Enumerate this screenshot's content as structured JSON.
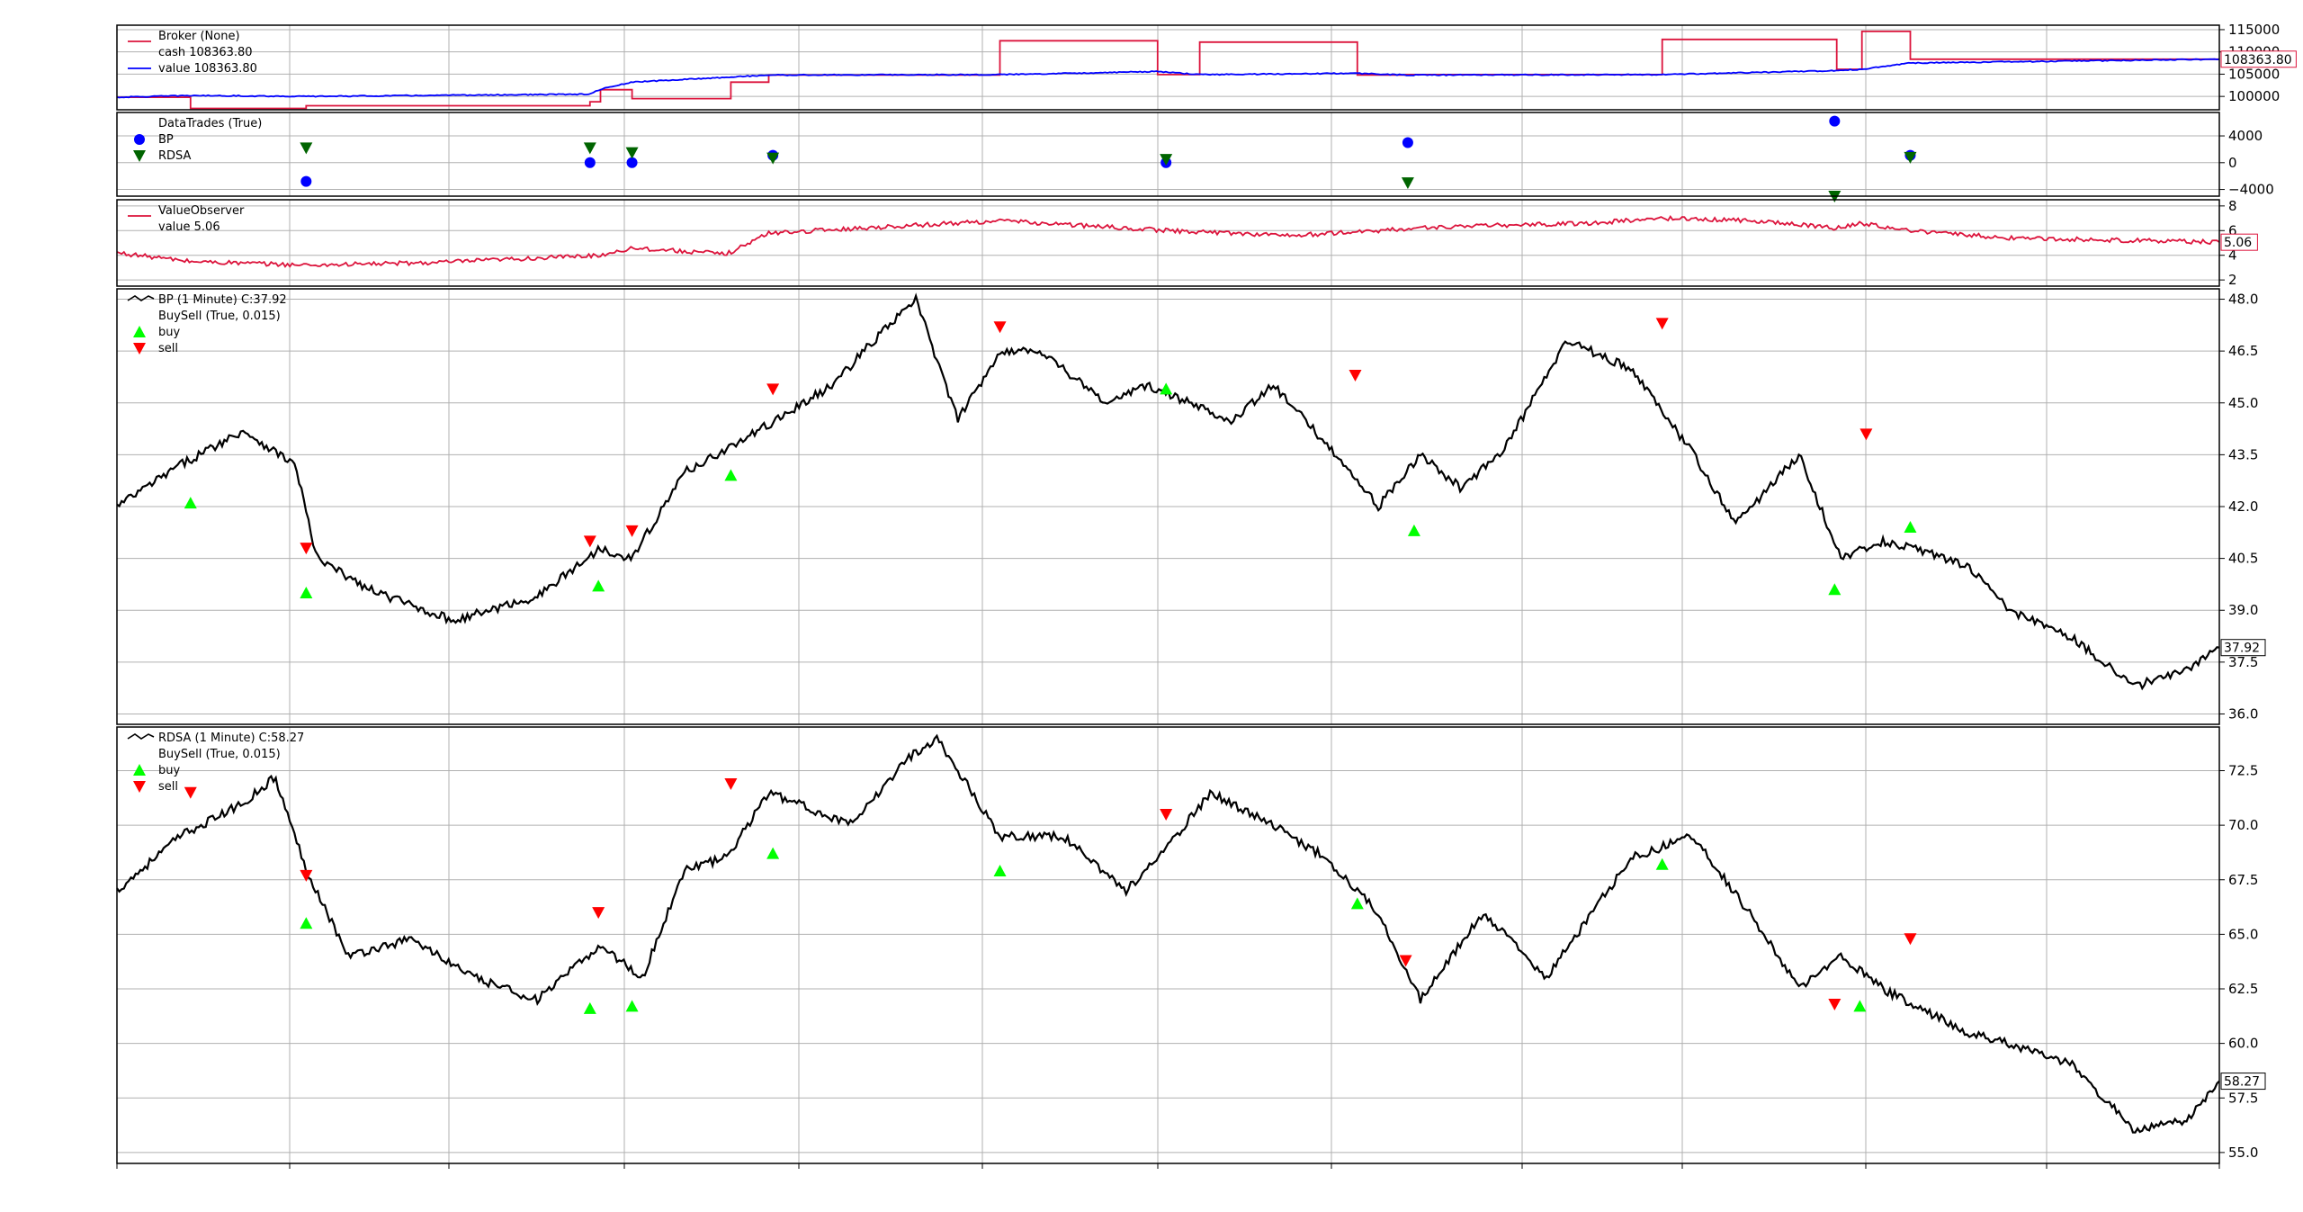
{
  "chart_data": [
    {
      "type": "line",
      "panel": "broker",
      "legend": {
        "title": "Broker (None)",
        "items": [
          {
            "label": "cash 108363.80",
            "color": "#dc143c",
            "marker": "line"
          },
          {
            "label": "value 108363.80",
            "color": "#0000ff",
            "marker": "line"
          }
        ]
      },
      "ylim": [
        97000,
        116000
      ],
      "yticks": [
        100000,
        105000,
        110000,
        115000
      ],
      "ytick_labels": [
        "100000",
        "105000",
        "110000",
        "115000"
      ],
      "last_value_label": "108363.80",
      "grid": true,
      "series": [
        {
          "name": "cash",
          "color": "#dc143c",
          "shape": "step",
          "x": [
            0,
            0.035,
            0.035,
            0.09,
            0.09,
            0.225,
            0.225,
            0.23,
            0.23,
            0.245,
            0.245,
            0.292,
            0.292,
            0.31,
            0.31,
            0.42,
            0.42,
            0.495,
            0.495,
            0.515,
            0.515,
            0.59,
            0.59,
            0.613,
            0.613,
            0.735,
            0.735,
            0.818,
            0.818,
            0.83,
            0.83,
            0.853,
            0.853,
            1
          ],
          "y": [
            99800,
            99800,
            97300,
            97300,
            97900,
            97900,
            98800,
            98800,
            101500,
            101500,
            99500,
            99500,
            103200,
            103200,
            104800,
            104800,
            112500,
            112500,
            104900,
            104900,
            112200,
            112200,
            104800,
            104800,
            104900,
            104900,
            112800,
            112800,
            106100,
            106100,
            114600,
            114600,
            108363.8,
            108363.8
          ]
        },
        {
          "name": "value",
          "color": "#0000ff",
          "shape": "noisy",
          "x": [
            0,
            0.035,
            0.09,
            0.225,
            0.23,
            0.245,
            0.31,
            0.42,
            0.495,
            0.515,
            0.59,
            0.613,
            0.735,
            0.818,
            0.83,
            0.853,
            1
          ],
          "y": [
            99800,
            100200,
            100000,
            100500,
            101600,
            103200,
            104800,
            104900,
            105600,
            104900,
            105200,
            104800,
            104900,
            105800,
            106100,
            107500,
            108363.8
          ]
        }
      ]
    },
    {
      "type": "scatter",
      "panel": "datatrades",
      "legend": {
        "title": "DataTrades (True)",
        "items": [
          {
            "label": "BP",
            "color": "#0000ff",
            "marker": "circle"
          },
          {
            "label": "RDSA",
            "color": "#006400",
            "marker": "triangle-down"
          }
        ]
      },
      "ylim": [
        -5000,
        7500
      ],
      "yticks": [
        -4000,
        0,
        4000
      ],
      "ytick_labels": [
        "−4000",
        "0",
        "4000"
      ],
      "grid": true,
      "series": [
        {
          "name": "BP",
          "color": "#0000ff",
          "marker": "circle",
          "x": [
            0.09,
            0.225,
            0.245,
            0.312,
            0.499,
            0.614,
            0.817,
            0.853
          ],
          "y": [
            -2800,
            0,
            0,
            1100,
            0,
            3000,
            6200,
            1100
          ]
        },
        {
          "name": "RDSA",
          "color": "#006400",
          "marker": "triangle-down",
          "x": [
            0.09,
            0.225,
            0.245,
            0.312,
            0.499,
            0.614,
            0.817,
            0.853
          ],
          "y": [
            2200,
            2200,
            1500,
            700,
            500,
            -3000,
            -5000,
            800
          ]
        }
      ]
    },
    {
      "type": "line",
      "panel": "valueobserver",
      "legend": {
        "title": "ValueObserver",
        "items": [
          {
            "label": "value 5.06",
            "color": "#dc143c",
            "marker": "line"
          }
        ]
      },
      "ylim": [
        1.5,
        8.5
      ],
      "yticks": [
        2,
        4,
        6,
        8
      ],
      "ytick_labels": [
        "2",
        "4",
        "6",
        "8"
      ],
      "last_value_label": "5.06",
      "grid": true,
      "series": [
        {
          "name": "value",
          "color": "#dc143c",
          "shape": "noisy",
          "x": [
            0,
            0.035,
            0.09,
            0.15,
            0.23,
            0.245,
            0.29,
            0.31,
            0.42,
            0.5,
            0.56,
            0.63,
            0.7,
            0.735,
            0.78,
            0.818,
            0.83,
            0.853,
            0.9,
            1
          ],
          "y": [
            4.2,
            3.5,
            3.2,
            3.4,
            4.0,
            4.6,
            4.1,
            5.8,
            6.8,
            6.0,
            5.6,
            6.3,
            6.6,
            7.0,
            6.8,
            6.2,
            6.6,
            6.0,
            5.4,
            5.06
          ]
        }
      ]
    },
    {
      "type": "line",
      "panel": "bp",
      "legend": {
        "title": "BP (1 Minute) C:37.92",
        "items": [
          {
            "label": "BuySell (True, 0.015)",
            "color": "",
            "marker": "none"
          },
          {
            "label": "buy",
            "color": "#00ff00",
            "marker": "triangle-up"
          },
          {
            "label": "sell",
            "color": "#ff0000",
            "marker": "triangle-down"
          }
        ]
      },
      "ylim": [
        35.7,
        48.3
      ],
      "yticks": [
        36.0,
        37.5,
        39.0,
        40.5,
        42.0,
        43.5,
        45.0,
        46.5,
        48.0
      ],
      "ytick_labels": [
        "36.0",
        "37.5",
        "39.0",
        "40.5",
        "42.0",
        "43.5",
        "45.0",
        "46.5",
        "48.0"
      ],
      "last_value_label": "37.92",
      "grid": true,
      "series": [
        {
          "name": "close",
          "color": "#000000",
          "shape": "noisy",
          "x": [
            0,
            0.03,
            0.06,
            0.085,
            0.095,
            0.12,
            0.16,
            0.2,
            0.23,
            0.245,
            0.27,
            0.3,
            0.34,
            0.36,
            0.38,
            0.4,
            0.42,
            0.44,
            0.47,
            0.49,
            0.51,
            0.53,
            0.55,
            0.58,
            0.6,
            0.62,
            0.64,
            0.66,
            0.69,
            0.72,
            0.75,
            0.77,
            0.8,
            0.82,
            0.84,
            0.86,
            0.88,
            0.9,
            0.93,
            0.96,
            0.985,
            1
          ],
          "y": [
            42.0,
            43.2,
            44.2,
            43.2,
            40.5,
            39.6,
            38.7,
            39.4,
            40.8,
            40.5,
            43.0,
            44.0,
            45.5,
            46.8,
            48.0,
            44.5,
            46.5,
            46.5,
            45.0,
            45.5,
            45.0,
            44.5,
            45.5,
            43.5,
            42.0,
            43.5,
            42.5,
            43.7,
            46.8,
            46.0,
            43.5,
            41.5,
            43.5,
            40.5,
            41.0,
            40.7,
            40.3,
            39.0,
            38.2,
            36.8,
            37.3,
            37.92
          ]
        },
        {
          "name": "buy",
          "color": "#00ff00",
          "marker": "triangle-up",
          "x": [
            0.035,
            0.09,
            0.229,
            0.292,
            0.499,
            0.617,
            0.817,
            0.853
          ],
          "y": [
            42.1,
            39.5,
            39.7,
            42.9,
            45.4,
            41.3,
            39.6,
            41.4
          ]
        },
        {
          "name": "sell",
          "color": "#ff0000",
          "marker": "triangle-down",
          "x": [
            0.09,
            0.225,
            0.245,
            0.312,
            0.42,
            0.589,
            0.735,
            0.832
          ],
          "y": [
            40.8,
            41.0,
            41.3,
            45.4,
            47.2,
            45.8,
            47.3,
            44.1
          ]
        }
      ]
    },
    {
      "type": "line",
      "panel": "rdsa",
      "legend": {
        "title": "RDSA (1 Minute) C:58.27",
        "items": [
          {
            "label": "BuySell (True, 0.015)",
            "color": "",
            "marker": "none"
          },
          {
            "label": "buy",
            "color": "#00ff00",
            "marker": "triangle-up"
          },
          {
            "label": "sell",
            "color": "#ff0000",
            "marker": "triangle-down"
          }
        ]
      },
      "ylim": [
        54.5,
        74.5
      ],
      "yticks": [
        55.0,
        57.5,
        60.0,
        62.5,
        65.0,
        67.5,
        70.0,
        72.5
      ],
      "ytick_labels": [
        "55.0",
        "57.5",
        "60.0",
        "62.5",
        "65.0",
        "67.5",
        "70.0",
        "72.5"
      ],
      "last_value_label": "58.27",
      "grid": true,
      "series": [
        {
          "name": "close",
          "color": "#000000",
          "shape": "noisy",
          "x": [
            0,
            0.03,
            0.06,
            0.075,
            0.09,
            0.11,
            0.14,
            0.17,
            0.2,
            0.23,
            0.25,
            0.27,
            0.29,
            0.31,
            0.35,
            0.375,
            0.39,
            0.42,
            0.45,
            0.48,
            0.5,
            0.52,
            0.55,
            0.575,
            0.6,
            0.62,
            0.65,
            0.68,
            0.72,
            0.75,
            0.78,
            0.8,
            0.82,
            0.84,
            0.86,
            0.88,
            0.9,
            0.93,
            0.96,
            0.985,
            1
          ],
          "y": [
            67.0,
            69.5,
            71.0,
            72.2,
            68.0,
            64.0,
            64.8,
            63.0,
            62.0,
            64.5,
            63.0,
            68.0,
            68.5,
            71.5,
            70.0,
            73.0,
            74.0,
            69.5,
            69.5,
            67.0,
            69.0,
            71.5,
            70.0,
            68.5,
            66.0,
            62.0,
            66.0,
            63.0,
            68.5,
            69.5,
            65.5,
            62.5,
            64.0,
            62.5,
            61.5,
            60.5,
            60.0,
            59.0,
            56.0,
            56.5,
            58.27
          ]
        },
        {
          "name": "buy",
          "color": "#00ff00",
          "marker": "triangle-up",
          "x": [
            0.09,
            0.225,
            0.245,
            0.312,
            0.42,
            0.59,
            0.735,
            0.829
          ],
          "y": [
            65.5,
            61.6,
            61.7,
            68.7,
            67.9,
            66.4,
            68.2,
            61.7
          ]
        },
        {
          "name": "sell",
          "color": "#ff0000",
          "marker": "triangle-down",
          "x": [
            0.035,
            0.09,
            0.229,
            0.292,
            0.499,
            0.613,
            0.817,
            0.853
          ],
          "y": [
            71.5,
            67.7,
            66.0,
            71.9,
            70.5,
            63.8,
            61.8,
            64.8
          ]
        }
      ]
    }
  ]
}
